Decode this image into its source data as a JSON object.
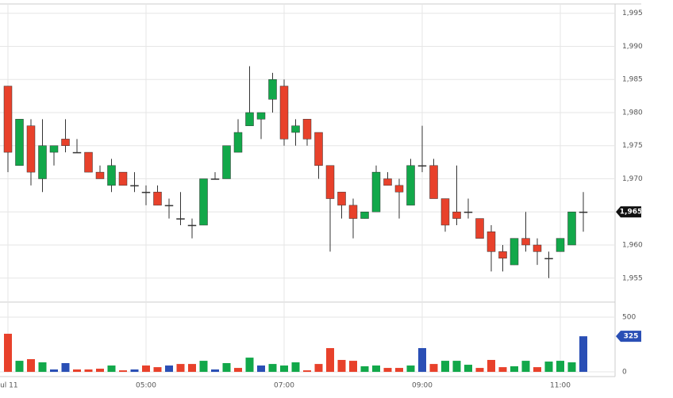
{
  "chart_data": {
    "type": "candlestick",
    "categories": [
      "Jul 11",
      null,
      null,
      null,
      null,
      null,
      null,
      null,
      null,
      null,
      null,
      null,
      "05:00",
      null,
      null,
      null,
      null,
      null,
      null,
      null,
      null,
      null,
      null,
      null,
      "07:00",
      null,
      null,
      null,
      null,
      null,
      null,
      null,
      null,
      null,
      null,
      null,
      "09:00",
      null,
      null,
      null,
      null,
      null,
      null,
      null,
      null,
      null,
      null,
      null,
      "11:00",
      null,
      null
    ],
    "open": [
      1984,
      1972,
      1978,
      1970,
      1974,
      1976,
      1974,
      1974,
      1971,
      1969,
      1971,
      1969,
      1968,
      1968,
      1966,
      1964,
      1963,
      1963,
      1970,
      1970,
      1974,
      1978,
      1979,
      1982,
      1984,
      1977,
      1979,
      1977,
      1972,
      1968,
      1966,
      1964,
      1965,
      1970,
      1969,
      1966,
      1972,
      1972,
      1967,
      1965,
      1965,
      1964,
      1962,
      1959,
      1957,
      1961,
      1960,
      1958,
      1959,
      1960,
      1965
    ],
    "high": [
      1984,
      1979,
      1979,
      1979,
      1975,
      1979,
      1976,
      1974,
      1972,
      1973,
      1971,
      1971,
      1969,
      1969,
      1967,
      1968,
      1964,
      1970,
      1971,
      1975,
      1979,
      1987,
      1980,
      1986,
      1985,
      1979,
      1979,
      1977,
      1972,
      1968,
      1967,
      1965,
      1972,
      1971,
      1970,
      1973,
      1978,
      1973,
      1967,
      1972,
      1967,
      1964,
      1963,
      1960,
      1961,
      1965,
      1961,
      1959,
      1961,
      1965,
      1968
    ],
    "low": [
      1971,
      1972,
      1969,
      1968,
      1972,
      1974,
      1974,
      1971,
      1970,
      1968,
      1969,
      1968,
      1966,
      1966,
      1964,
      1963,
      1961,
      1963,
      1970,
      1970,
      1974,
      1978,
      1976,
      1980,
      1975,
      1975,
      1975,
      1970,
      1959,
      1964,
      1961,
      1964,
      1965,
      1969,
      1964,
      1966,
      1971,
      1967,
      1962,
      1963,
      1964,
      1961,
      1956,
      1956,
      1957,
      1959,
      1957,
      1955,
      1959,
      1960,
      1962
    ],
    "close": [
      1974,
      1979,
      1971,
      1975,
      1975,
      1975,
      1974,
      1971,
      1970,
      1972,
      1969,
      1969,
      1968,
      1966,
      1966,
      1964,
      1963,
      1970,
      1970,
      1975,
      1977,
      1980,
      1980,
      1985,
      1976,
      1978,
      1976,
      1972,
      1967,
      1966,
      1964,
      1965,
      1971,
      1969,
      1968,
      1972,
      1972,
      1967,
      1963,
      1964,
      1965,
      1961,
      1959,
      1958,
      1961,
      1960,
      1959,
      1958,
      1961,
      1965,
      1965
    ],
    "up_color": "#12a84a",
    "down_color": "#e8412b",
    "ylim": [
      1951.5,
      1996.4
    ],
    "yticks": [
      {
        "value": 1955,
        "label": "1,955"
      },
      {
        "value": 1960,
        "label": "1,960"
      },
      {
        "value": 1965,
        "label": "1,965"
      },
      {
        "value": 1970,
        "label": "1,970"
      },
      {
        "value": 1975,
        "label": "1,975"
      },
      {
        "value": 1980,
        "label": "1,980"
      },
      {
        "value": 1985,
        "label": "1,985"
      },
      {
        "value": 1990,
        "label": "1,990"
      },
      {
        "value": 1995,
        "label": "1,995"
      }
    ],
    "last_price": {
      "value": 1965,
      "label": "1,965"
    },
    "grid": true,
    "volume": {
      "values": [
        348,
        101,
        116,
        87,
        22,
        80,
        22,
        22,
        29,
        58,
        14,
        22,
        58,
        43,
        58,
        72,
        72,
        101,
        22,
        80,
        36,
        130,
        58,
        72,
        58,
        87,
        14,
        72,
        217,
        109,
        101,
        51,
        58,
        36,
        36,
        58,
        217,
        72,
        101,
        101,
        65,
        36,
        109,
        43,
        51,
        101,
        43,
        94,
        101,
        87,
        325
      ],
      "value_colors": [
        "red",
        "green",
        "red",
        "green",
        "blue",
        "blue",
        "red",
        "red",
        "red",
        "green",
        "red",
        "blue",
        "red",
        "red",
        "blue",
        "red",
        "red",
        "green",
        "blue",
        "green",
        "red",
        "green",
        "blue",
        "green",
        "green",
        "green",
        "red",
        "red",
        "red",
        "red",
        "red",
        "green",
        "green",
        "red",
        "red",
        "green",
        "blue",
        "red",
        "green",
        "green",
        "green",
        "red",
        "red",
        "red",
        "green",
        "green",
        "red",
        "green",
        "green",
        "green",
        "blue"
      ],
      "colors": {
        "red": "#e8412b",
        "green": "#12a84a",
        "blue": "#2a4fb5"
      },
      "ylim": [
        -7,
        630
      ],
      "yticks": [
        0,
        500
      ],
      "last_value": {
        "value": 325,
        "label": "325"
      }
    }
  }
}
